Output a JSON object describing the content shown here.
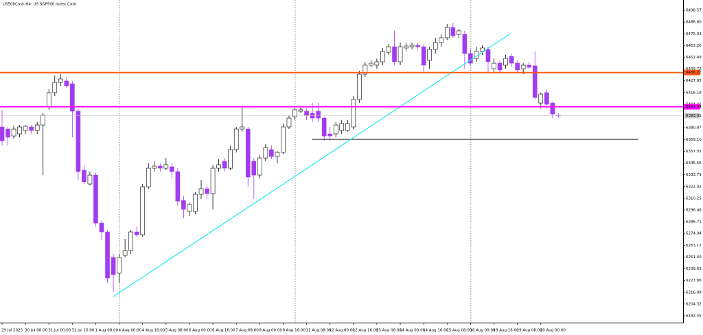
{
  "chart_data": {
    "type": "candlestick",
    "title": "US500Cash,H4: US S&P500 Index Cash",
    "categories": [
      "29 Jul 2025",
      null,
      null,
      null,
      "30 Jul 08:00",
      null,
      null,
      null,
      "31 Jul 00:00",
      null,
      null,
      null,
      "31 Jul 16:00",
      null,
      null,
      null,
      "1 Aug 08:00",
      null,
      null,
      null,
      "4 Aug 00:00",
      null,
      null,
      null,
      "4 Aug 16:00",
      null,
      null,
      null,
      "5 Aug 08:00",
      null,
      null,
      null,
      "6 Aug 00:00",
      null,
      null,
      null,
      "6 Aug 16:00",
      null,
      null,
      null,
      "7 Aug 08:00",
      null,
      null,
      null,
      "8 Aug 00:00",
      null,
      null,
      null,
      "8 Aug 16:00",
      null,
      null,
      null,
      "11 Aug 08:00",
      null,
      null,
      null,
      "12 Aug 00:00",
      null,
      null,
      null,
      "12 Aug 16:00",
      null,
      null,
      null,
      "13 Aug 08:00",
      null,
      null,
      null,
      "14 Aug 00:00",
      null,
      null,
      null,
      "14 Aug 16:00",
      null,
      null,
      null,
      "15 Aug 08:00",
      null,
      null,
      null,
      "18 Aug 00:00",
      null,
      null,
      null,
      "18 Aug 16:00",
      null,
      null,
      null,
      "19 Aug 08:00",
      null,
      null,
      null,
      "20 Aug 00:00",
      null,
      null,
      null
    ],
    "open": [
      6381.7,
      6379.6,
      6372.7,
      6374.8,
      6378.2,
      6381.7,
      6378.2,
      6383.7,
      6402.3,
      6416.1,
      6426.4,
      6427.8,
      6425.0,
      6397.5,
      6338.4,
      6324.6,
      6333.5,
      6285.4,
      6276.5,
      6251.0,
      6235.2,
      6253.1,
      6257.9,
      6276.5,
      6273.7,
      6321.8,
      6340.4,
      6342.5,
      6340.4,
      6341.8,
      6337.0,
      6308.1,
      6297.1,
      6297.1,
      6314.3,
      6319.8,
      6315.0,
      6340.4,
      6347.3,
      6340.4,
      6359.0,
      6379.6,
      6379.6,
      6347.3,
      6333.5,
      6350.7,
      6359.0,
      6352.1,
      6356.2,
      6381.7,
      6392.0,
      6397.5,
      6397.5,
      6395.4,
      6397.5,
      6390.6,
      6374.8,
      6374.8,
      6378.2,
      6378.2,
      6381.7,
      6409.2,
      6434.6,
      6443.6,
      6443.6,
      6447.0,
      6456.6,
      6462.1,
      6447.0,
      6460.8,
      6462.1,
      6463.5,
      6462.1,
      6448.4,
      6459.4,
      6466.3,
      6471.1,
      6481.4,
      6474.5,
      6474.5,
      6455.3,
      6450.4,
      6457.3,
      6459.4,
      6440.1,
      6445.6,
      6443.6,
      6452.5,
      6445.6,
      6440.1,
      6443.6,
      6442.9,
      6405.7,
      6416.1,
      6405.7,
      6393.4
    ],
    "high": [
      6398.9,
      6381.7,
      6383.1,
      6383.7,
      6383.7,
      6383.7,
      6386.5,
      6395.4,
      6419.5,
      6433.3,
      6434.6,
      6431.9,
      6427.8,
      6400.2,
      6343.9,
      6337.0,
      6335.6,
      6287.5,
      6278.5,
      6254.5,
      6254.5,
      6269.6,
      6278.5,
      6282.0,
      6324.6,
      6345.2,
      6347.3,
      6345.2,
      6350.7,
      6345.2,
      6340.4,
      6312.9,
      6306.0,
      6316.3,
      6328.7,
      6323.2,
      6343.9,
      6349.4,
      6350.7,
      6363.1,
      6381.7,
      6402.3,
      6381.7,
      6350.7,
      6354.2,
      6364.5,
      6363.1,
      6357.6,
      6385.1,
      6393.4,
      6400.2,
      6402.3,
      6400.2,
      6405.7,
      6405.7,
      6392.0,
      6381.7,
      6386.5,
      6388.6,
      6388.6,
      6412.6,
      6438.1,
      6447.0,
      6448.4,
      6450.4,
      6460.8,
      6464.9,
      6478.0,
      6466.3,
      6466.3,
      6466.3,
      6466.3,
      6464.2,
      6462.1,
      6471.1,
      6474.5,
      6484.8,
      6486.2,
      6480.0,
      6478.0,
      6459.4,
      6462.1,
      6463.5,
      6462.1,
      6450.4,
      6448.4,
      6453.9,
      6455.3,
      6448.4,
      6445.6,
      6447.0,
      6457.3,
      6416.1,
      6419.5,
      6407.1,
      6395.4
    ],
    "low": [
      6363.1,
      6363.1,
      6370.0,
      6371.4,
      6374.8,
      6374.8,
      6374.8,
      6333.5,
      6398.9,
      6412.6,
      6422.9,
      6420.9,
      6371.4,
      6328.7,
      6324.6,
      6323.2,
      6282.0,
      6268.2,
      6225.6,
      6216.6,
      6225.6,
      6251.0,
      6254.5,
      6271.6,
      6271.6,
      6319.8,
      6337.0,
      6337.0,
      6338.4,
      6330.1,
      6302.6,
      6290.2,
      6292.3,
      6294.3,
      6309.5,
      6309.5,
      6299.2,
      6337.0,
      6337.0,
      6338.4,
      6356.2,
      6376.9,
      6321.8,
      6309.5,
      6330.1,
      6347.3,
      6349.4,
      6345.2,
      6354.2,
      6379.6,
      6388.6,
      6395.4,
      6388.6,
      6386.5,
      6386.5,
      6367.9,
      6367.9,
      6371.4,
      6374.8,
      6376.9,
      6379.6,
      6405.7,
      6431.9,
      6441.5,
      6440.1,
      6443.6,
      6453.9,
      6443.6,
      6443.6,
      6457.3,
      6459.4,
      6459.4,
      6436.7,
      6440.1,
      6455.3,
      6462.1,
      6469.0,
      6471.1,
      6471.1,
      6440.1,
      6443.6,
      6447.0,
      6453.9,
      6436.7,
      6436.7,
      6436.7,
      6440.1,
      6441.5,
      6436.7,
      6434.6,
      6440.1,
      6409.2,
      6400.2,
      6400.2,
      6390.6,
      6390.6
    ],
    "close": [
      6367.9,
      6371.4,
      6379.6,
      6381.7,
      6382.4,
      6378.2,
      6383.7,
      6393.4,
      6416.1,
      6426.4,
      6429.8,
      6422.9,
      6397.5,
      6337.0,
      6326.7,
      6333.5,
      6285.4,
      6276.5,
      6230.4,
      6233.8,
      6251.0,
      6257.9,
      6276.5,
      6273.7,
      6321.8,
      6340.4,
      6342.5,
      6340.4,
      6343.9,
      6337.0,
      6307.4,
      6299.2,
      6304.0,
      6314.3,
      6319.8,
      6315.0,
      6340.4,
      6343.9,
      6340.4,
      6359.0,
      6379.6,
      6381.7,
      6331.5,
      6333.5,
      6350.7,
      6361.0,
      6352.1,
      6356.2,
      6381.7,
      6390.6,
      6398.9,
      6398.9,
      6393.4,
      6390.6,
      6390.6,
      6372.7,
      6372.7,
      6383.7,
      6385.1,
      6385.1,
      6409.2,
      6434.6,
      6443.6,
      6445.6,
      6447.0,
      6457.3,
      6462.1,
      6447.0,
      6462.1,
      6462.8,
      6463.5,
      6462.1,
      6443.6,
      6459.4,
      6466.3,
      6471.1,
      6481.4,
      6473.1,
      6478.0,
      6455.3,
      6445.6,
      6457.3,
      6460.8,
      6447.0,
      6445.6,
      6438.8,
      6450.4,
      6445.6,
      6438.8,
      6443.6,
      6441.5,
      6411.2,
      6414.7,
      6404.4,
      6394.7,
      6393.0
    ],
    "up_color": "#ffffff",
    "down_color": "#a23cf0",
    "ylim": [
      6185.7,
      6508.9
    ],
    "yticks": [
      6498.57,
      {
        "value": 6486.8,
        "label": "6486.80"
      },
      6475.03,
      6463.26,
      6451.49,
      6439.72,
      6427.95,
      6416.18,
      6404.41,
      6380.87,
      {
        "value": 6369.1,
        "label": "6369.10"
      },
      6357.33,
      6345.56,
      6333.79,
      6322.02,
      6310.25,
      6298.48,
      6286.71,
      6274.94,
      6263.17,
      {
        "value": 6251.4,
        "label": "6251.40"
      },
      6239.63,
      6227.86,
      6216.09,
      6204.32,
      6192.55
    ],
    "levels": [
      {
        "value": 6436.22,
        "color": "#ff5a14"
      },
      {
        "value": 6401.94,
        "color": "#ff00ff"
      },
      {
        "value": 6393.01,
        "color": "#c8c8c8"
      }
    ],
    "support_line": 6369.3,
    "trendline": [
      6211.8,
      6475.2
    ],
    "trendline_color": "#22e6f2"
  }
}
